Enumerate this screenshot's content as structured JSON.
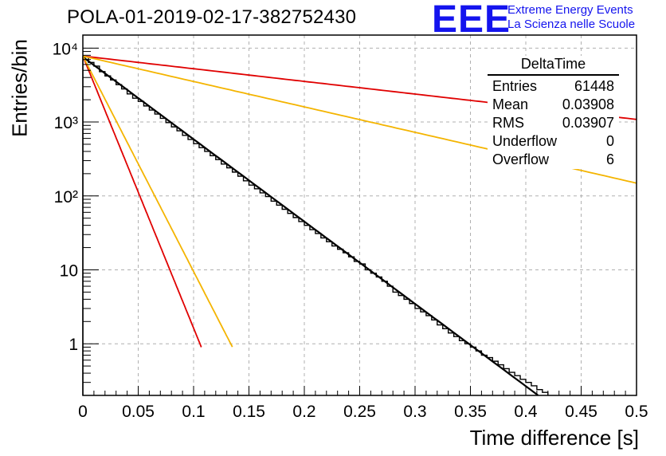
{
  "chart_data": {
    "type": "line",
    "title": "POLA-01-2019-02-17-382752430",
    "xlabel": "Time difference [s]",
    "ylabel": "Entries/bin",
    "xlim": [
      0,
      0.5
    ],
    "ylim": [
      0.2,
      15000
    ],
    "yscale": "log",
    "grid": true,
    "x_ticks": [
      "0",
      "0.05",
      "0.1",
      "0.15",
      "0.2",
      "0.25",
      "0.3",
      "0.35",
      "0.4",
      "0.45",
      "0.5"
    ],
    "y_ticks": [
      {
        "value": 1,
        "label": "1"
      },
      {
        "value": 10,
        "label": "10"
      },
      {
        "value": 100,
        "label": "10²"
      },
      {
        "value": 1000,
        "label": "10³"
      },
      {
        "value": 10000,
        "label": "10⁴"
      }
    ],
    "histogram": {
      "name": "DeltaTime",
      "color": "#000000",
      "bin_width": 0.005,
      "x_start": 0,
      "counts": [
        7600,
        6400,
        5700,
        4800,
        4200,
        3700,
        3200,
        2800,
        2400,
        2100,
        1900,
        1650,
        1450,
        1280,
        1120,
        980,
        860,
        760,
        660,
        580,
        510,
        450,
        400,
        350,
        310,
        270,
        240,
        210,
        185,
        160,
        140,
        125,
        110,
        98,
        85,
        75,
        66,
        58,
        51,
        45,
        40,
        35,
        31,
        27,
        24,
        21,
        19,
        17,
        15,
        13,
        12,
        10,
        9,
        8,
        7,
        6,
        5,
        4.5,
        4,
        3.5,
        3,
        2.7,
        2.4,
        2.1,
        1.8,
        1.6,
        1.4,
        1.25,
        1.1,
        1,
        0.9,
        0.8,
        0.7,
        0.65,
        0.58,
        0.52,
        0.46,
        0.41,
        0.37,
        0.33,
        0.3,
        0.27,
        0.24,
        0.22
      ]
    },
    "fits": [
      {
        "color": "#000000",
        "x_end": 0.418,
        "y0": 7600,
        "tau": 0.039
      },
      {
        "color": "#e00000",
        "x_end": 0.5,
        "y0": 7800,
        "tau": 0.2535
      },
      {
        "color": "#f4b400",
        "x_end": 0.5,
        "y0": 7800,
        "tau": 0.1263
      },
      {
        "color": "#e00000",
        "x_end": 0.107,
        "y0": 7800,
        "tau": 0.0118
      },
      {
        "color": "#f4b400",
        "x_end": 0.135,
        "y0": 7800,
        "tau": 0.0149
      }
    ],
    "stats": {
      "title": "DeltaTime",
      "rows": [
        {
          "label": "Entries",
          "value": "61448"
        },
        {
          "label": "Mean",
          "value": "0.03908"
        },
        {
          "label": "RMS",
          "value": "0.03907"
        },
        {
          "label": "Underflow",
          "value": "0"
        },
        {
          "label": "Overflow",
          "value": "6"
        }
      ]
    }
  },
  "logo": {
    "text": "EEE",
    "line1": "Extreme Energy Events",
    "line2": "La Scienza nelle Scuole"
  }
}
